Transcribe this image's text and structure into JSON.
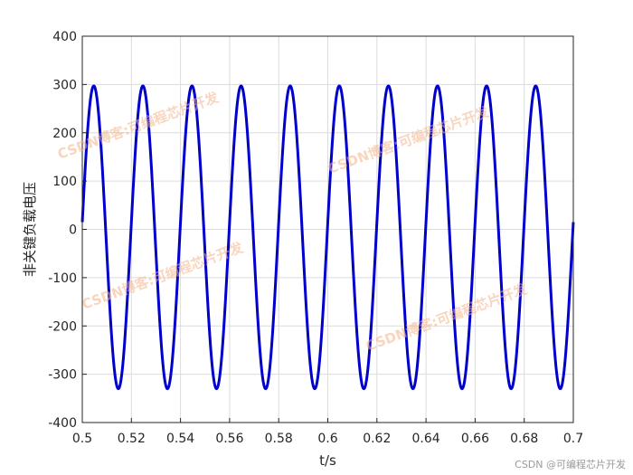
{
  "chart_data": {
    "type": "line",
    "title": "",
    "xlabel": "t/s",
    "ylabel": "非关键负载电压",
    "xlim": [
      0.5,
      0.7
    ],
    "ylim": [
      -400,
      400
    ],
    "xticks": [
      "0.5",
      "0.52",
      "0.54",
      "0.56",
      "0.58",
      "0.6",
      "0.62",
      "0.64",
      "0.66",
      "0.68",
      "0.7"
    ],
    "yticks": [
      "400",
      "300",
      "200",
      "100",
      "0",
      "-100",
      "-200",
      "-300",
      "-400"
    ],
    "grid": true,
    "series": [
      {
        "color": "#0000cc",
        "frequency_hz": 50,
        "peak_max": 297,
        "peak_min": -330,
        "value_at_start": 15
      }
    ]
  },
  "watermarks": [
    "CSDN博客:可编程芯片开发",
    "CSDN博客:可编程芯片开发",
    "CSDN博客:可编程芯片开发",
    "CSDN博客:可编程芯片开发"
  ],
  "credit": "CSDN @可编程芯片开发"
}
